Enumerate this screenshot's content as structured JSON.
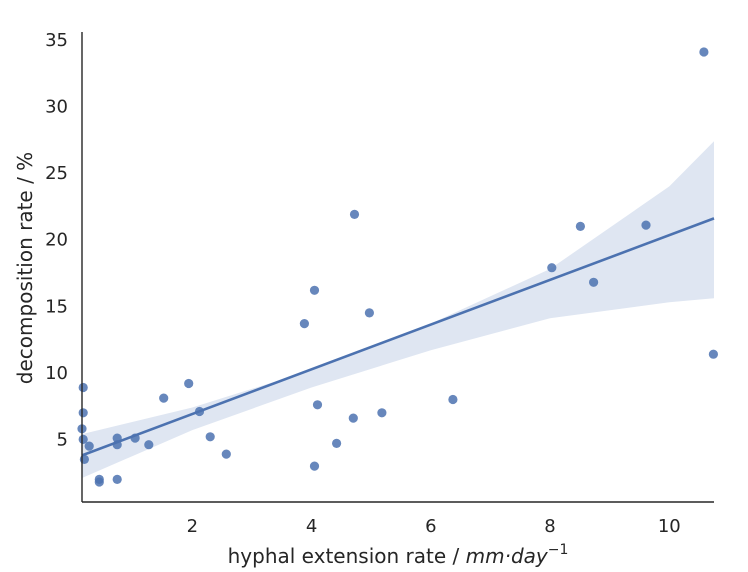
{
  "chart_data": {
    "type": "scatter",
    "title": "",
    "xlabel_main": "hyphal extension rate / ",
    "xlabel_unit": "mm·day",
    "xlabel_exp": "−1",
    "ylabel": "decomposition rate / %",
    "xlim": [
      0.15,
      10.75
    ],
    "ylim": [
      0.3,
      35.6
    ],
    "xticks": [
      2,
      4,
      6,
      8,
      10
    ],
    "yticks": [
      5,
      10,
      15,
      20,
      25,
      30,
      35
    ],
    "grid": false,
    "colors": {
      "points": "#4c72b0",
      "line": "#4c72b0",
      "band": "#dfe6f2",
      "axis": "#262626"
    },
    "points": [
      {
        "x": 0.17,
        "y": 8.9
      },
      {
        "x": 0.17,
        "y": 7.0
      },
      {
        "x": 0.15,
        "y": 5.8
      },
      {
        "x": 0.17,
        "y": 5.0
      },
      {
        "x": 0.27,
        "y": 4.5
      },
      {
        "x": 0.19,
        "y": 3.5
      },
      {
        "x": 0.44,
        "y": 2.0
      },
      {
        "x": 0.44,
        "y": 1.8
      },
      {
        "x": 0.74,
        "y": 5.1
      },
      {
        "x": 0.74,
        "y": 4.6
      },
      {
        "x": 0.74,
        "y": 2.0
      },
      {
        "x": 1.04,
        "y": 5.1
      },
      {
        "x": 1.27,
        "y": 4.6
      },
      {
        "x": 1.52,
        "y": 8.1
      },
      {
        "x": 1.94,
        "y": 9.2
      },
      {
        "x": 2.12,
        "y": 7.1
      },
      {
        "x": 2.3,
        "y": 5.2
      },
      {
        "x": 2.57,
        "y": 3.9
      },
      {
        "x": 3.88,
        "y": 13.7
      },
      {
        "x": 4.05,
        "y": 16.2
      },
      {
        "x": 4.05,
        "y": 3.0
      },
      {
        "x": 4.1,
        "y": 7.6
      },
      {
        "x": 4.42,
        "y": 4.7
      },
      {
        "x": 4.7,
        "y": 6.6
      },
      {
        "x": 4.72,
        "y": 21.9
      },
      {
        "x": 4.97,
        "y": 14.5
      },
      {
        "x": 5.18,
        "y": 7.0
      },
      {
        "x": 6.37,
        "y": 8.0
      },
      {
        "x": 8.03,
        "y": 17.9
      },
      {
        "x": 8.51,
        "y": 21.0
      },
      {
        "x": 8.73,
        "y": 16.8
      },
      {
        "x": 9.61,
        "y": 21.1
      },
      {
        "x": 10.58,
        "y": 34.1
      },
      {
        "x": 10.74,
        "y": 11.4
      }
    ],
    "regression": {
      "x": [
        0.15,
        10.75
      ],
      "y": [
        3.8,
        21.6
      ]
    },
    "confidence_band": {
      "x": [
        0.15,
        2,
        4,
        6,
        8,
        10,
        10.75
      ],
      "upper": [
        5.4,
        7.4,
        10.2,
        13.7,
        17.8,
        24.0,
        27.4
      ],
      "lower": [
        2.1,
        5.7,
        8.9,
        11.7,
        14.1,
        15.3,
        15.6
      ]
    }
  }
}
